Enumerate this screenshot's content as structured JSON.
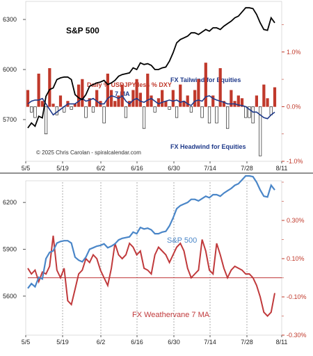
{
  "chart_data": [
    {
      "type": "line+bar",
      "title": "S&P 500",
      "series_labels": {
        "bars_line1": "Daily % USDJPY less % DXY",
        "bars_line2": "7 MA"
      },
      "annotations": {
        "tailwind": "FX Tailwind for Equities",
        "headwind": "FX Headwind for Equities",
        "copyright": "© 2025 Chris Carolan - spiralcalendar.com"
      },
      "colors": {
        "sp": "#000000",
        "bars_pos": "#c0392b",
        "bars_neg": "#ffffff",
        "ma": "#1f3a8a",
        "annot": "#1f3a8a",
        "label": "#c0392b"
      },
      "x_ticks": [
        "5/5",
        "5/19",
        "6/2",
        "6/16",
        "6/30",
        "7/14",
        "7/28",
        "8/11"
      ],
      "y_left_ticks": [
        "6300",
        "6000",
        "5700"
      ],
      "y_left_values": [
        6300,
        6000,
        5700
      ],
      "ylim_left": [
        5450,
        6400
      ],
      "y_right_ticks": [
        "1.0%",
        "0.0%",
        "-1.0%"
      ],
      "y_right_values": [
        1.0,
        0.0,
        -1.0
      ],
      "ylim_right": [
        -1.0,
        1.9
      ],
      "sp500": [
        5650,
        5680,
        5660,
        5720,
        5710,
        5840,
        5880,
        5890,
        5940,
        5950,
        5955,
        5955,
        5940,
        5850,
        5830,
        5820,
        5850,
        5900,
        5910,
        5920,
        5925,
        5935,
        5910,
        5920,
        5935,
        5960,
        5970,
        5975,
        5980,
        6010,
        6000,
        6040,
        6030,
        6035,
        6025,
        6000,
        6000,
        6010,
        6015,
        6050,
        6100,
        6160,
        6180,
        6190,
        6200,
        6220,
        6220,
        6210,
        6225,
        6240,
        6230,
        6250,
        6250,
        6240,
        6260,
        6275,
        6290,
        6310,
        6320,
        6345,
        6370,
        6370,
        6365,
        6330,
        6280,
        6240,
        6235,
        6310,
        6280
      ],
      "bars": [
        0.3,
        -0.1,
        -0.2,
        0.6,
        0.1,
        -0.5,
        0.7,
        0.05,
        -0.15,
        0.2,
        -0.1,
        0.1,
        -0.05,
        0.05,
        0.4,
        0.5,
        -0.2,
        0.15,
        -0.1,
        0.3,
        0.1,
        -0.3,
        0.6,
        0.3,
        0.1,
        0.2,
        0.4,
        -0.2,
        0.1,
        0.3,
        0.5,
        0.25,
        -0.4,
        0.6,
        0.2,
        -0.1,
        0.15,
        0.3,
        0.1,
        -0.05,
        0.3,
        -0.2,
        0.4,
        0.1,
        0.2,
        -0.1,
        0.3,
        0.5,
        -0.2,
        0.8,
        -0.3,
        0.2,
        -0.3,
        0.7,
        0.1,
        -0.4,
        0.3,
        0.1,
        0.2,
        0.15,
        -0.2,
        -0.2,
        -0.3,
        0.2,
        -0.9,
        0.4,
        0.15,
        -0.15,
        0.35
      ],
      "ma7": [
        0.05,
        0.1,
        0.12,
        0.12,
        0.15,
        0.05,
        -0.05,
        -0.15,
        -0.1,
        -0.05,
        0.0,
        0.05,
        0.05,
        0.05,
        0.1,
        0.15,
        0.1,
        0.12,
        0.15,
        0.1,
        0.05,
        0.05,
        0.15,
        0.2,
        0.18,
        0.15,
        0.2,
        0.1,
        0.05,
        0.12,
        0.15,
        0.1,
        0.08,
        0.12,
        0.15,
        0.1,
        0.05,
        0.08,
        0.1,
        0.12,
        0.1,
        0.12,
        0.08,
        0.1,
        0.05,
        0.02,
        0.1,
        0.12,
        0.1,
        0.18,
        0.2,
        0.15,
        0.12,
        0.1,
        0.08,
        0.05,
        0.05,
        0.05,
        0.03,
        0.02,
        0.0,
        -0.05,
        -0.1,
        -0.1,
        -0.15,
        -0.2,
        -0.22,
        -0.15,
        -0.1
      ]
    },
    {
      "type": "line",
      "series_labels": {
        "sp": "S&P 500",
        "vane": "FX Weathervane 7 MA"
      },
      "colors": {
        "sp": "#4a86c8",
        "vane": "#c0393b",
        "baseline": "#c0393b",
        "grid": "#888888"
      },
      "x_ticks": [
        "5/5",
        "5/19",
        "6/2",
        "6/16",
        "6/30",
        "7/14",
        "7/28",
        "8/11"
      ],
      "y_left_ticks": [
        "6200",
        "5900",
        "5600"
      ],
      "y_left_values": [
        6200,
        5900,
        5600
      ],
      "ylim_left": [
        5350,
        6330
      ],
      "y_right_ticks": [
        "0.30%",
        "0.10%",
        "-0.10%",
        "-0.30%"
      ],
      "y_right_values": [
        0.3,
        0.1,
        -0.1,
        -0.3
      ],
      "ylim_right": [
        -0.3,
        0.5
      ],
      "sp500": [
        5650,
        5680,
        5660,
        5720,
        5710,
        5840,
        5880,
        5890,
        5940,
        5950,
        5955,
        5955,
        5940,
        5850,
        5830,
        5820,
        5850,
        5900,
        5910,
        5920,
        5925,
        5935,
        5910,
        5920,
        5935,
        5960,
        5970,
        5975,
        5980,
        6010,
        6000,
        6040,
        6030,
        6035,
        6025,
        6000,
        6000,
        6010,
        6015,
        6050,
        6100,
        6160,
        6180,
        6190,
        6200,
        6220,
        6220,
        6210,
        6225,
        6240,
        6230,
        6250,
        6250,
        6240,
        6260,
        6275,
        6290,
        6310,
        6320,
        6345,
        6370,
        6370,
        6365,
        6330,
        6280,
        6240,
        6235,
        6310,
        6280
      ],
      "vane": [
        0.05,
        0.02,
        0.04,
        -0.02,
        0.03,
        0.02,
        0.06,
        0.22,
        0.04,
        0.0,
        0.05,
        -0.12,
        -0.14,
        -0.06,
        0.02,
        0.04,
        0.1,
        0.08,
        0.12,
        0.1,
        0.04,
        0.0,
        -0.04,
        0.05,
        0.18,
        0.12,
        0.1,
        0.12,
        0.18,
        0.16,
        0.12,
        0.14,
        0.05,
        0.04,
        0.02,
        0.12,
        0.16,
        0.14,
        0.12,
        0.08,
        0.12,
        0.16,
        0.18,
        0.14,
        0.05,
        0.0,
        0.02,
        0.04,
        0.2,
        0.14,
        0.04,
        0.02,
        0.18,
        0.12,
        0.05,
        0.0,
        0.04,
        0.06,
        0.05,
        0.04,
        0.02,
        0.02,
        0.0,
        -0.04,
        -0.1,
        -0.18,
        -0.2,
        -0.18,
        -0.08
      ],
      "baseline": 0.0
    }
  ]
}
